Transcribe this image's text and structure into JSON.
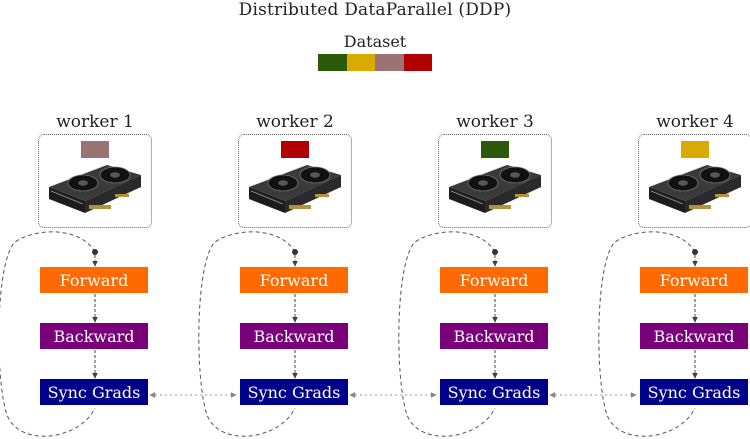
{
  "title": "Distributed DataParallel (DDP)",
  "dataset": {
    "label": "Dataset",
    "segments": [
      "#2a5a0a",
      "#d9aa00",
      "#9c7373",
      "#b00000"
    ]
  },
  "colors": {
    "forward": "#ff6a00",
    "backward": "#7a007a",
    "sync": "#00008b"
  },
  "workers": [
    {
      "label": "worker 1",
      "shard_color": "#9c7373",
      "forward": "Forward",
      "backward": "Backward",
      "sync": "Sync Grads"
    },
    {
      "label": "worker 2",
      "shard_color": "#b00000",
      "forward": "Forward",
      "backward": "Backward",
      "sync": "Sync Grads"
    },
    {
      "label": "worker 3",
      "shard_color": "#2a5a0a",
      "forward": "Forward",
      "backward": "Backward",
      "sync": "Sync Grads"
    },
    {
      "label": "worker 4",
      "shard_color": "#d9aa00",
      "forward": "Forward",
      "backward": "Backward",
      "sync": "Sync Grads"
    }
  ]
}
